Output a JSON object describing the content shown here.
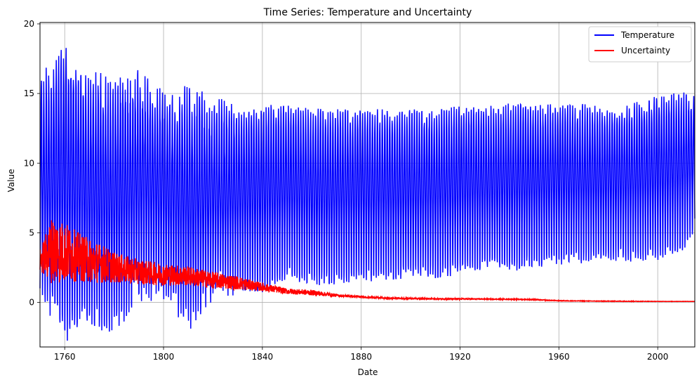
{
  "chart_data": {
    "type": "line",
    "title": "Time Series: Temperature and Uncertainty",
    "xlabel": "Date",
    "ylabel": "Value",
    "xlim": [
      1750,
      2015
    ],
    "ylim": [
      -3.2,
      20.1
    ],
    "x_ticks": [
      "1760",
      "1800",
      "1840",
      "1880",
      "1920",
      "1960",
      "2000"
    ],
    "y_ticks": [
      "0",
      "5",
      "10",
      "15",
      "20"
    ],
    "grid": true,
    "legend_position": "top-right",
    "series": [
      {
        "name": "Temperature",
        "color": "#0000ff",
        "x": [
          1750,
          1760,
          1770,
          1780,
          1790,
          1800,
          1810,
          1820,
          1830,
          1840,
          1850,
          1860,
          1870,
          1880,
          1890,
          1900,
          1910,
          1920,
          1930,
          1940,
          1950,
          1960,
          1970,
          1980,
          1990,
          2000,
          2010,
          2015
        ],
        "monthly_max": [
          15.9,
          19.0,
          16.5,
          16.2,
          16.4,
          14.9,
          15.7,
          14.4,
          14.4,
          14.6,
          14.6,
          14.3,
          14.3,
          14.2,
          14.2,
          14.2,
          14.1,
          14.5,
          14.4,
          14.6,
          14.5,
          14.5,
          14.5,
          14.3,
          14.6,
          15.1,
          15.4,
          15.0
        ],
        "monthly_min": [
          1.0,
          -2.1,
          -1.3,
          -1.5,
          0.5,
          0.9,
          -1.4,
          0.8,
          1.2,
          1.0,
          2.0,
          1.5,
          1.6,
          1.8,
          1.8,
          2.0,
          2.0,
          2.3,
          2.6,
          2.5,
          2.8,
          3.0,
          3.1,
          3.2,
          3.2,
          3.3,
          3.6,
          5.5
        ]
      },
      {
        "name": "Uncertainty",
        "color": "#ff0000",
        "x": [
          1750,
          1755,
          1760,
          1765,
          1770,
          1775,
          1780,
          1790,
          1800,
          1810,
          1820,
          1830,
          1840,
          1850,
          1860,
          1870,
          1880,
          1890,
          1900,
          1910,
          1920,
          1930,
          1940,
          1950,
          1960,
          1970,
          1980,
          1990,
          2000,
          2010,
          2015
        ],
        "values": [
          3.0,
          3.8,
          3.6,
          3.3,
          3.0,
          2.8,
          2.5,
          2.2,
          2.0,
          1.9,
          1.6,
          1.4,
          1.1,
          0.8,
          0.7,
          0.5,
          0.4,
          0.3,
          0.28,
          0.25,
          0.25,
          0.24,
          0.23,
          0.2,
          0.12,
          0.1,
          0.09,
          0.08,
          0.07,
          0.07,
          0.07
        ],
        "spread": [
          0.8,
          2.5,
          2.2,
          1.8,
          1.6,
          1.4,
          1.1,
          0.9,
          0.8,
          0.7,
          0.6,
          0.5,
          0.3,
          0.2,
          0.2,
          0.1,
          0.06,
          0.05,
          0.04,
          0.04,
          0.04,
          0.03,
          0.03,
          0.03,
          0.02,
          0.02,
          0.02,
          0.02,
          0.01,
          0.01,
          0.01
        ]
      }
    ]
  }
}
